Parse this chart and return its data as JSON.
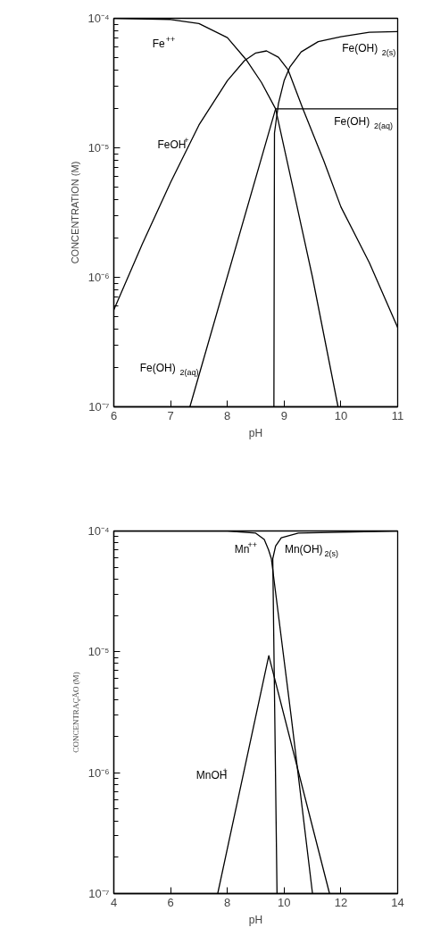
{
  "chart_data": [
    {
      "type": "line",
      "xlabel": "pH",
      "ylabel": "CONCENTRATION (M)",
      "log": true,
      "xlim": [
        6,
        11
      ],
      "ylim": [
        1e-07,
        0.0001
      ],
      "xticks": [
        6,
        7,
        8,
        9,
        10,
        11
      ],
      "yticks": [
        {
          "value": 1e-07,
          "label": "10⁻⁷"
        },
        {
          "value": 1e-06,
          "label": "10⁻⁶"
        },
        {
          "value": 1e-05,
          "label": "10⁻⁵"
        },
        {
          "value": 0.0001,
          "label": "10⁻⁴"
        }
      ],
      "series": [
        {
          "name": "Fe$^{++}$",
          "color": "#000000",
          "x": [
            6,
            7,
            7.5,
            8,
            8.33,
            8.6,
            8.85,
            9.2,
            9.5,
            9.95
          ],
          "values": [
            0.0001,
            9.8e-05,
            9.1e-05,
            7.1e-05,
            4.8e-05,
            3.2e-05,
            2e-05,
            4e-06,
            1e-06,
            1e-07
          ]
        },
        {
          "name": "FeOH$^{+}$",
          "color": "#000000",
          "x": [
            6,
            6.5,
            7,
            7.5,
            8,
            8.3,
            8.5,
            8.69,
            8.9,
            9.07,
            9.33,
            9.7,
            10,
            10.5,
            11
          ],
          "values": [
            5.6e-07,
            1.8e-06,
            5.4e-06,
            1.5e-05,
            3.3e-05,
            4.7e-05,
            5.4e-05,
            5.6e-05,
            5e-05,
            4e-05,
            2e-05,
            7.9e-06,
            3.5e-06,
            1.3e-06,
            4.1e-07
          ]
        },
        {
          "name": "Fe(OH)$_{2(aq)}$",
          "color": "#000000",
          "x": [
            7.34,
            8.85,
            11
          ],
          "values": [
            1e-07,
            2e-05,
            2e-05
          ]
        },
        {
          "name": "Fe(OH)$_{2(s)}$",
          "color": "#000000",
          "x": [
            8.82,
            8.83,
            8.9,
            9.0,
            9.1,
            9.3,
            9.6,
            10,
            10.5,
            11
          ],
          "values": [
            1e-07,
            1.3e-05,
            2.2e-05,
            3.3e-05,
            4.2e-05,
            5.5e-05,
            6.6e-05,
            7.2e-05,
            7.8e-05,
            7.9e-05
          ]
        }
      ]
    },
    {
      "type": "line",
      "xlabel": "pH",
      "ylabel": "CONCENTRAÇÃO (M)",
      "log": true,
      "xlim": [
        4,
        14
      ],
      "ylim": [
        1e-07,
        0.0001
      ],
      "xticks": [
        4,
        6,
        8,
        10,
        12,
        14
      ],
      "yticks": [
        {
          "value": 1e-07,
          "label": "10⁻⁷"
        },
        {
          "value": 1e-06,
          "label": "10⁻⁶"
        },
        {
          "value": 1e-05,
          "label": "10⁻⁵"
        },
        {
          "value": 0.0001,
          "label": "10⁻⁴"
        }
      ],
      "series": [
        {
          "name": "Mn$^{++}$",
          "color": "#000000",
          "x": [
            4,
            8,
            9,
            9.3,
            9.45,
            9.55,
            10.25,
            11.0
          ],
          "values": [
            0.0001,
            0.0001,
            9.6e-05,
            8.5e-05,
            7e-05,
            5.9e-05,
            2.9e-06,
            1e-07
          ]
        },
        {
          "name": "Mn(OH)$_{2(s)}$",
          "color": "#000000",
          "x": [
            9.75,
            9.6,
            9.7,
            9.9,
            10.5,
            14
          ],
          "values": [
            1e-07,
            5.9e-05,
            7.5e-05,
            8.8e-05,
            9.6e-05,
            0.0001
          ]
        },
        {
          "name": "MnOH$^{+}$",
          "color": "#000000",
          "x": [
            7.66,
            9.46,
            11.6
          ],
          "values": [
            1e-07,
            9.3e-06,
            1e-07
          ]
        }
      ]
    }
  ]
}
